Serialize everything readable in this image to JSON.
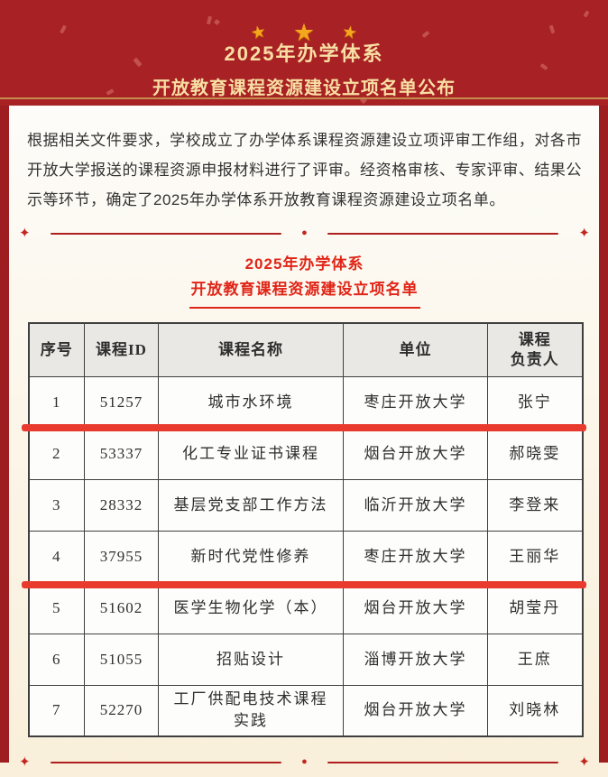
{
  "banner": {
    "title_line1": "2025年办学体系",
    "title_line2": "开放教育课程资源建设立项名单公布"
  },
  "icons": {
    "star": "★",
    "diamond": "✦",
    "dot": "●"
  },
  "intro": {
    "text": "根据相关文件要求，学校成立了办学体系课程资源建设立项评审工作组，对各市开放大学报送的课程资源申报材料进行了评审。经资格审核、专家评审、结果公示等环节，确定了2025年办学体系开放教育课程资源建设立项名单。"
  },
  "section": {
    "title_line1": "2025年办学体系",
    "title_line2": "开放教育课程资源建设立项名单"
  },
  "table": {
    "headers": [
      "序号",
      "课程ID",
      "课程名称",
      "单位",
      "课程\n负责人"
    ],
    "rows": [
      [
        "1",
        "51257",
        "城市水环境",
        "枣庄开放大学",
        "张宁"
      ],
      [
        "2",
        "53337",
        "化工专业证书课程",
        "烟台开放大学",
        "郝晓雯"
      ],
      [
        "3",
        "28332",
        "基层党支部工作方法",
        "临沂开放大学",
        "李登来"
      ],
      [
        "4",
        "37955",
        "新时代党性修养",
        "枣庄开放大学",
        "王丽华"
      ],
      [
        "5",
        "51602",
        "医学生物化学（本）",
        "烟台开放大学",
        "胡莹丹"
      ],
      [
        "6",
        "51055",
        "招贴设计",
        "淄博开放大学",
        "王庶"
      ],
      [
        "7",
        "52270",
        "工厂供配电技术课程\n实践",
        "烟台开放大学",
        "刘晓林"
      ]
    ],
    "highlighted_after_rows": [
      1,
      4
    ]
  },
  "colors": {
    "banner-red": "#a82124",
    "stripe-red": "#9e1d20",
    "gold-line": "#c48f4e",
    "banner-gold": "#f8dfa3",
    "star-gold": "#f4a61d",
    "card-top": "#fdfcf9",
    "card-bottom": "#f9efda",
    "title-red": "#e02517",
    "divider-red": "#b01f1f",
    "highlight-red": "#e93a2e",
    "table-border": "#3f3f3f",
    "header-bg": "#e9e8e4",
    "cell-bg": "#fdfdfb",
    "text-dark": "#333333"
  }
}
